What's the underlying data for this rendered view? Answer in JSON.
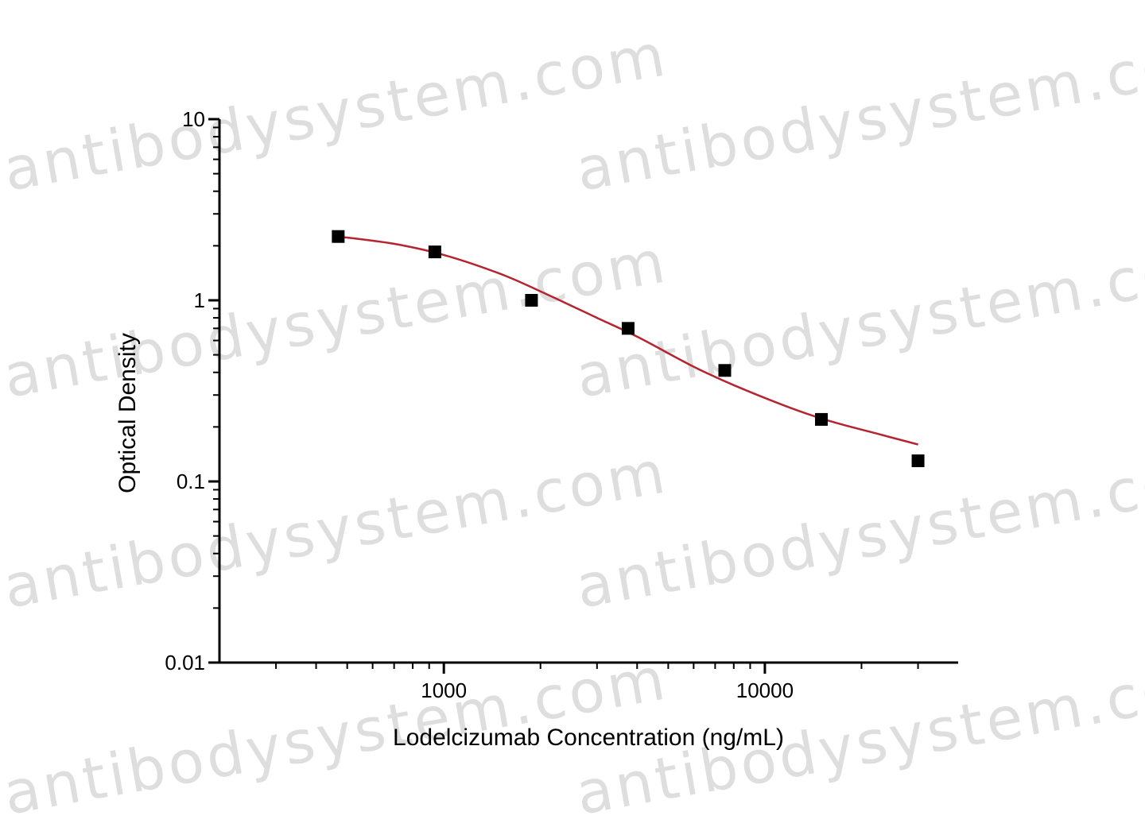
{
  "watermark": {
    "text": "antibodysystem.com"
  },
  "chart_data": {
    "type": "scatter",
    "title": "",
    "xlabel": "Lodelcizumab  Concentration (ng/mL)",
    "ylabel": "Optical Density",
    "x_scale": "log",
    "y_scale": "log",
    "xlim": [
      200,
      40000
    ],
    "ylim": [
      0.01,
      10
    ],
    "x_tick_labels": [
      "1000",
      "10000"
    ],
    "x_tick_values": [
      1000,
      10000
    ],
    "y_tick_labels": [
      "0.01",
      "0.1",
      "1",
      "10"
    ],
    "y_tick_values": [
      0.01,
      0.1,
      1,
      10
    ],
    "grid": false,
    "series": [
      {
        "type": "scatter",
        "marker": "square",
        "color": "#000000",
        "x": [
          468.75,
          937.5,
          1875,
          3750,
          7500,
          15000,
          30000
        ],
        "y": [
          2.25,
          1.85,
          1.0,
          0.7,
          0.41,
          0.22,
          0.13
        ]
      },
      {
        "type": "line",
        "fit": "curve",
        "color": "#b5242f",
        "x": [
          468.75,
          700,
          1000,
          1500,
          2000,
          3000,
          4000,
          6000,
          8000,
          12000,
          16000,
          22000,
          30000
        ],
        "y": [
          2.25,
          2.05,
          1.78,
          1.4,
          1.12,
          0.8,
          0.63,
          0.43,
          0.34,
          0.255,
          0.215,
          0.185,
          0.16
        ]
      }
    ]
  }
}
